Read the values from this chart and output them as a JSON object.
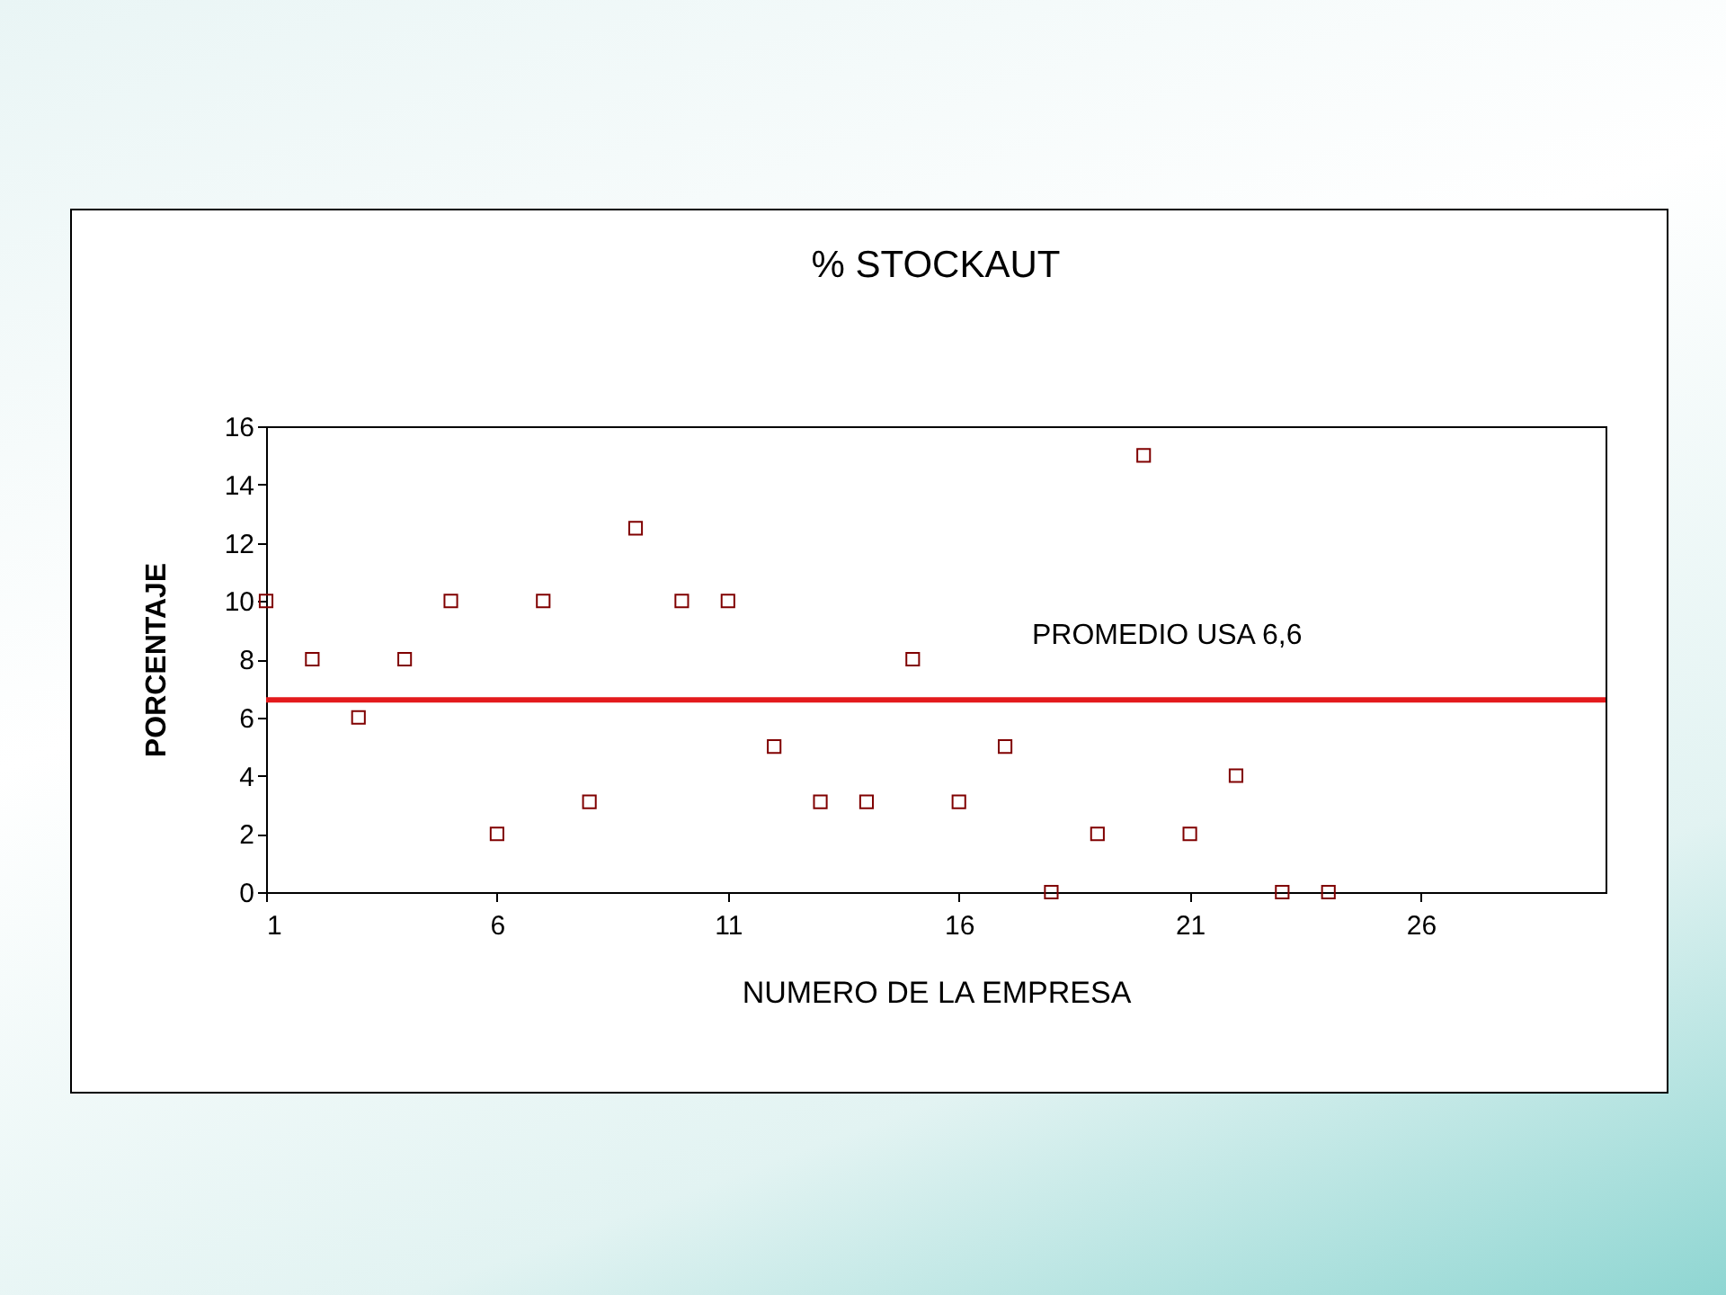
{
  "chart_data": {
    "type": "scatter",
    "title": "%   STOCKAUT",
    "xlabel": "NUMERO DE LA EMPRESA",
    "ylabel": "PORCENTAJE",
    "x": [
      1,
      2,
      3,
      4,
      5,
      6,
      7,
      8,
      9,
      10,
      11,
      12,
      13,
      14,
      15,
      16,
      17,
      18,
      19,
      20,
      21,
      22,
      23,
      24
    ],
    "series": [
      {
        "color": "#800000",
        "values": [
          10,
          8,
          6,
          8,
          10,
          2,
          10,
          3.1,
          12.5,
          10,
          10,
          5,
          3.1,
          3.1,
          8,
          3.1,
          5,
          0,
          2,
          15,
          2,
          4,
          0,
          0
        ]
      }
    ],
    "marker": "square",
    "xlim": [
      1,
      30
    ],
    "xticks": [
      1,
      6,
      11,
      16,
      21,
      26
    ],
    "ylim": [
      0,
      16
    ],
    "yticks": [
      0,
      2,
      4,
      6,
      8,
      10,
      12,
      14,
      16
    ],
    "ref_lines": [
      {
        "axis": "y",
        "value": 6.6,
        "label": "PROMEDIO USA  6,6",
        "color": "#e31a1c"
      }
    ],
    "grid": false
  }
}
